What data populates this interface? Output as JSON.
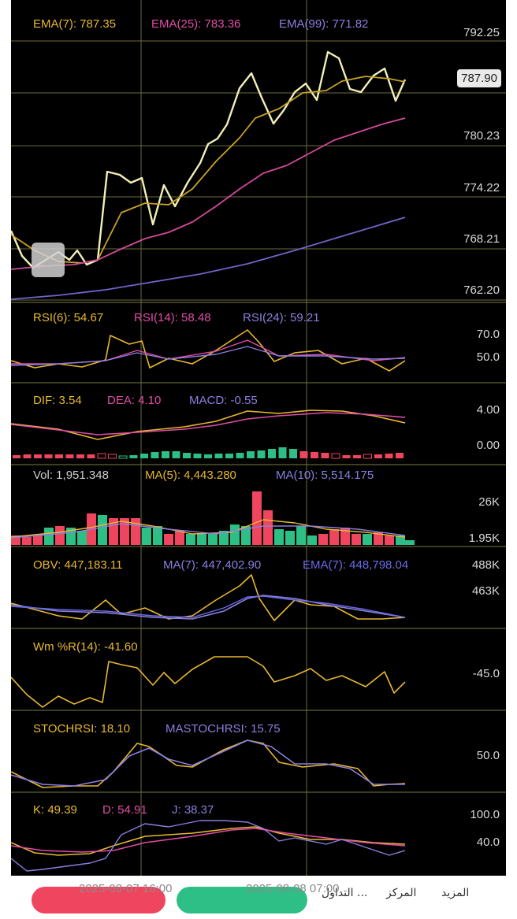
{
  "main": {
    "ema": [
      {
        "label": "EMA(7): 787.35",
        "color": "#e8b830"
      },
      {
        "label": "EMA(25): 783.36",
        "color": "#e04ca8"
      },
      {
        "label": "EMA(99): 771.82",
        "color": "#8a7fe0"
      }
    ],
    "axis": [
      "792.25",
      "780.23",
      "774.22",
      "768.21",
      "762.20"
    ],
    "price_tag": "787.90"
  },
  "rsi": {
    "labels": [
      {
        "label": "RSI(6): 54.67",
        "color": "#e8b830"
      },
      {
        "label": "RSI(14): 58.48",
        "color": "#e04ca8"
      },
      {
        "label": "RSI(24): 59.21",
        "color": "#8a7fe0"
      }
    ],
    "axis": [
      "70.0",
      "50.0"
    ]
  },
  "macd": {
    "labels": [
      {
        "label": "DIF: 3.54",
        "color": "#e8b830"
      },
      {
        "label": "DEA: 4.10",
        "color": "#e04ca8"
      },
      {
        "label": "MACD: -0.55",
        "color": "#8a7fe0"
      }
    ],
    "axis": [
      "4.00",
      "0.00"
    ]
  },
  "vol": {
    "labels": [
      {
        "label": "Vol: 1,951.348",
        "color": "#cfcfcf"
      },
      {
        "label": "MA(5): 4,443.280",
        "color": "#e8b830"
      },
      {
        "label": "MA(10): 5,514.175",
        "color": "#8a7fe0"
      }
    ],
    "axis": [
      "26K",
      "1.95K"
    ]
  },
  "obv": {
    "labels": [
      {
        "label": "OBV: 447,183.11",
        "color": "#e8b830"
      },
      {
        "label": "MA(7): 447,402.90",
        "color": "#8a7fe0"
      },
      {
        "label": "EMA(7): 448,798.04",
        "color": "#6a6ae8"
      }
    ],
    "axis": [
      "488K",
      "463K"
    ]
  },
  "wr": {
    "labels": [
      {
        "label": "Wm %R(14): -41.60",
        "color": "#e8b830"
      }
    ],
    "axis": [
      "-45.0"
    ]
  },
  "stoch": {
    "labels": [
      {
        "label": "STOCHRSI: 18.10",
        "color": "#e8b830"
      },
      {
        "label": "MASTOCHRSI: 15.75",
        "color": "#8a7fe0"
      }
    ],
    "axis": [
      "50.0"
    ]
  },
  "kdj": {
    "labels": [
      {
        "label": "K: 49.39",
        "color": "#e8b830"
      },
      {
        "label": "D: 54.91",
        "color": "#e04ca8"
      },
      {
        "label": "J: 38.37",
        "color": "#8a7fe0"
      }
    ],
    "axis": [
      "100.0",
      "40.0"
    ]
  },
  "time_axis": [
    "2025-08-07 16:00",
    "2025-08-08 07:00"
  ],
  "bottom": {
    "nav": [
      "المزيد",
      "المركز",
      "التداول ..."
    ],
    "buy_color": "#2ebf86",
    "sell_color": "#f0455e"
  }
}
